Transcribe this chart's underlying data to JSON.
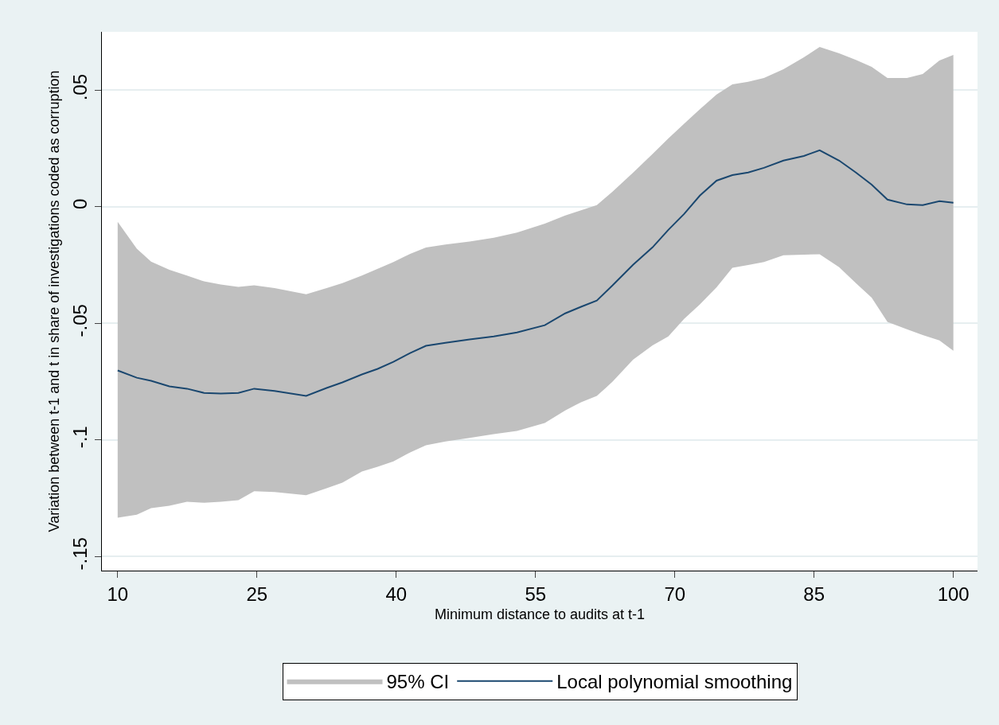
{
  "chart_data": {
    "type": "line",
    "xlabel": "Minimum distance to audits at t-1",
    "ylabel": "Variation between t-1 and t in share of investigations coded as corruption",
    "xlim": [
      8.3,
      102.6
    ],
    "xticks": [
      10,
      25,
      40,
      55,
      70,
      85,
      100
    ],
    "ylim": [
      -0.156,
      0.075
    ],
    "yticks": [
      {
        "value": -0.15,
        "label": "-.15"
      },
      {
        "value": -0.1,
        "label": "-.1"
      },
      {
        "value": -0.05,
        "label": "-.05"
      },
      {
        "value": 0,
        "label": "0"
      },
      {
        "value": 0.05,
        "label": ".05"
      }
    ],
    "grid": "y",
    "legend": "bottom",
    "marker": "none",
    "line_style": "solid",
    "annotations": [
      "95% CI"
    ],
    "series": [
      {
        "name": "Local polynomial smoothing",
        "color": "#1a476f",
        "x": [
          10,
          12.06,
          13.6,
          15.57,
          17.46,
          19.3,
          21.1,
          23,
          24.7,
          26.9,
          30.3,
          32.5,
          34.2,
          36.3,
          38,
          39.7,
          41.5,
          43.2,
          45.3,
          47.9,
          50.5,
          53,
          56,
          58.2,
          59.9,
          61.6,
          63.3,
          65.5,
          67.6,
          69.3,
          71,
          72.7,
          74.5,
          76.2,
          77.9,
          79.6,
          81.7,
          83.9,
          85.6,
          87.7,
          89.5,
          91.2,
          92.9,
          95,
          96.7,
          98.5,
          100
        ],
        "values": [
          -0.0702,
          -0.0733,
          -0.0746,
          -0.077,
          -0.078,
          -0.0798,
          -0.0801,
          -0.0798,
          -0.078,
          -0.079,
          -0.0811,
          -0.0777,
          -0.0753,
          -0.0719,
          -0.0695,
          -0.0665,
          -0.0627,
          -0.0596,
          -0.0583,
          -0.0569,
          -0.0556,
          -0.0539,
          -0.0508,
          -0.0457,
          -0.0429,
          -0.0402,
          -0.0337,
          -0.0249,
          -0.0174,
          -0.0099,
          -0.0031,
          0.0048,
          0.0112,
          0.0136,
          0.0147,
          0.0167,
          0.0198,
          0.0218,
          0.0242,
          0.0198,
          0.0147,
          0.0095,
          0.0031,
          0.001,
          0.0007,
          0.0024,
          0.0017
        ],
        "upper": [
          -0.0065,
          -0.018,
          -0.0235,
          -0.027,
          -0.0295,
          -0.032,
          -0.0333,
          -0.0344,
          -0.0337,
          -0.0349,
          -0.0375,
          -0.0349,
          -0.0327,
          -0.0295,
          -0.0266,
          -0.0237,
          -0.0202,
          -0.0175,
          -0.0162,
          -0.0149,
          -0.0133,
          -0.0111,
          -0.0072,
          -0.0037,
          -0.0015,
          0.0007,
          0.0065,
          0.0146,
          0.0226,
          0.0293,
          0.0356,
          0.0418,
          0.0481,
          0.0525,
          0.0536,
          0.0552,
          0.059,
          0.0641,
          0.0685,
          0.0658,
          0.063,
          0.06,
          0.0552,
          0.0552,
          0.0569,
          0.0627,
          0.0651
        ],
        "lower": [
          -0.1333,
          -0.132,
          -0.1292,
          -0.1282,
          -0.1265,
          -0.1269,
          -0.1265,
          -0.1258,
          -0.122,
          -0.1223,
          -0.1237,
          -0.1207,
          -0.1183,
          -0.1135,
          -0.1115,
          -0.1092,
          -0.1053,
          -0.1023,
          -0.1006,
          -0.0991,
          -0.0975,
          -0.0961,
          -0.0927,
          -0.0873,
          -0.0838,
          -0.0811,
          -0.075,
          -0.0656,
          -0.0594,
          -0.0556,
          -0.0481,
          -0.0419,
          -0.0345,
          -0.0262,
          -0.025,
          -0.0237,
          -0.0208,
          -0.0205,
          -0.0204,
          -0.0259,
          -0.0327,
          -0.039,
          -0.0494,
          -0.0525,
          -0.055,
          -0.0573,
          -0.0617
        ]
      }
    ]
  }
}
